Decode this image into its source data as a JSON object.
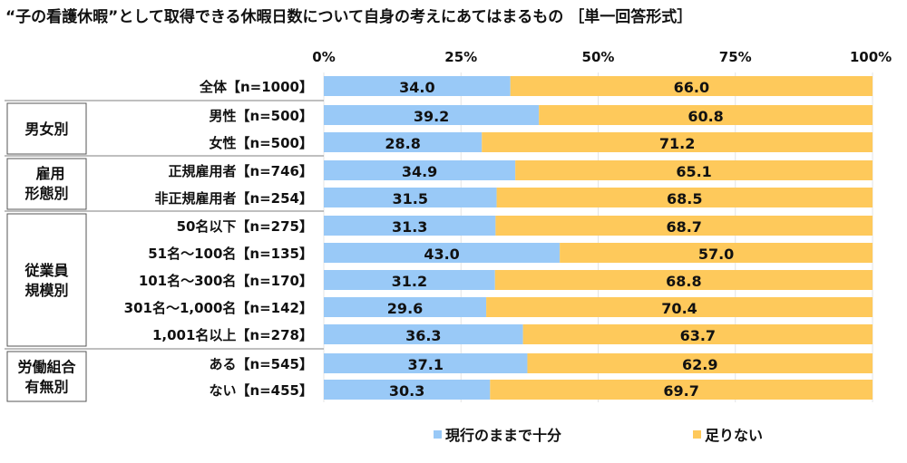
{
  "chart_data": {
    "type": "bar",
    "orientation": "horizontal",
    "stacked": "percent",
    "title": "“子の看護休暇”として取得できる休暇日数について自身の考えにあてはまるもの ［単一回答形式］",
    "xlim": [
      0,
      100
    ],
    "x_ticks": [
      "0%",
      "25%",
      "50%",
      "75%",
      "100%"
    ],
    "grid": true,
    "legend_position": "bottom",
    "categories": [
      "全体【n=1000】",
      "男性【n=500】",
      "女性【n=500】",
      "正規雇用者【n=746】",
      "非正規雇用者【n=254】",
      "50名以下【n=275】",
      "51名～100名【n=135】",
      "101名～300名【n=170】",
      "301名～1,000名【n=142】",
      "1,001名以上【n=278】",
      "ある【n=545】",
      "ない【n=455】"
    ],
    "groups": [
      {
        "label": "男女別",
        "lines": [
          "男女別"
        ],
        "rows": [
          1,
          2
        ]
      },
      {
        "label": "雇用形態別",
        "lines": [
          "雇用",
          "形態別"
        ],
        "rows": [
          3,
          4
        ]
      },
      {
        "label": "従業員規模別",
        "lines": [
          "従業員",
          "規模別"
        ],
        "rows": [
          5,
          6,
          7,
          8,
          9
        ]
      },
      {
        "label": "労働組合有無別",
        "lines": [
          "労働組合",
          "有無別"
        ],
        "rows": [
          10,
          11
        ]
      }
    ],
    "series": [
      {
        "name": "現行のままで十分",
        "color": "#99c9f7",
        "values": [
          34.0,
          39.2,
          28.8,
          34.9,
          31.5,
          31.3,
          43.0,
          31.2,
          29.6,
          36.3,
          37.1,
          30.3
        ]
      },
      {
        "name": "足りない",
        "color": "#fec95b",
        "values": [
          66.0,
          60.8,
          71.2,
          65.1,
          68.5,
          68.7,
          57.0,
          68.8,
          70.4,
          63.7,
          62.9,
          69.7
        ]
      }
    ]
  }
}
